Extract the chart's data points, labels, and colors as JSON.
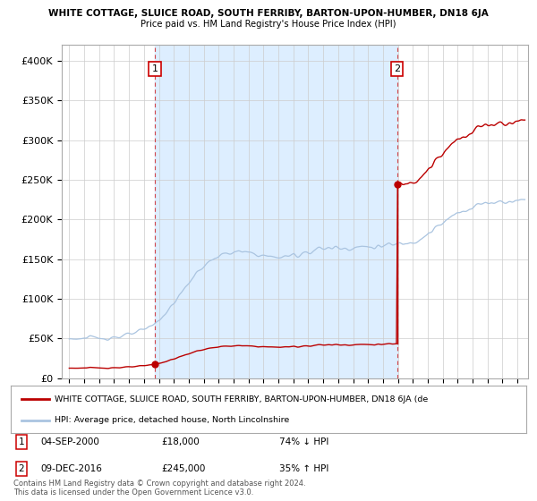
{
  "title1": "WHITE COTTAGE, SLUICE ROAD, SOUTH FERRIBY, BARTON-UPON-HUMBER, DN18 6JA",
  "title2": "Price paid vs. HM Land Registry's House Price Index (HPI)",
  "sale1_date": 2000.75,
  "sale1_price": 18000,
  "sale2_date": 2016.94,
  "sale2_price": 245000,
  "xmin": 1994.5,
  "xmax": 2025.7,
  "ymin": 0,
  "ymax": 420000,
  "yticks": [
    0,
    50000,
    100000,
    150000,
    200000,
    250000,
    300000,
    350000,
    400000
  ],
  "price_color": "#bb0000",
  "hpi_color": "#aac4e0",
  "vline_color": "#cc0000",
  "shade_color": "#ddeeff",
  "legend_label1": "WHITE COTTAGE, SLUICE ROAD, SOUTH FERRIBY, BARTON-UPON-HUMBER, DN18 6JA (de",
  "legend_label2": "HPI: Average price, detached house, North Lincolnshire",
  "footer1": "Contains HM Land Registry data © Crown copyright and database right 2024.",
  "footer2": "This data is licensed under the Open Government Licence v3.0."
}
